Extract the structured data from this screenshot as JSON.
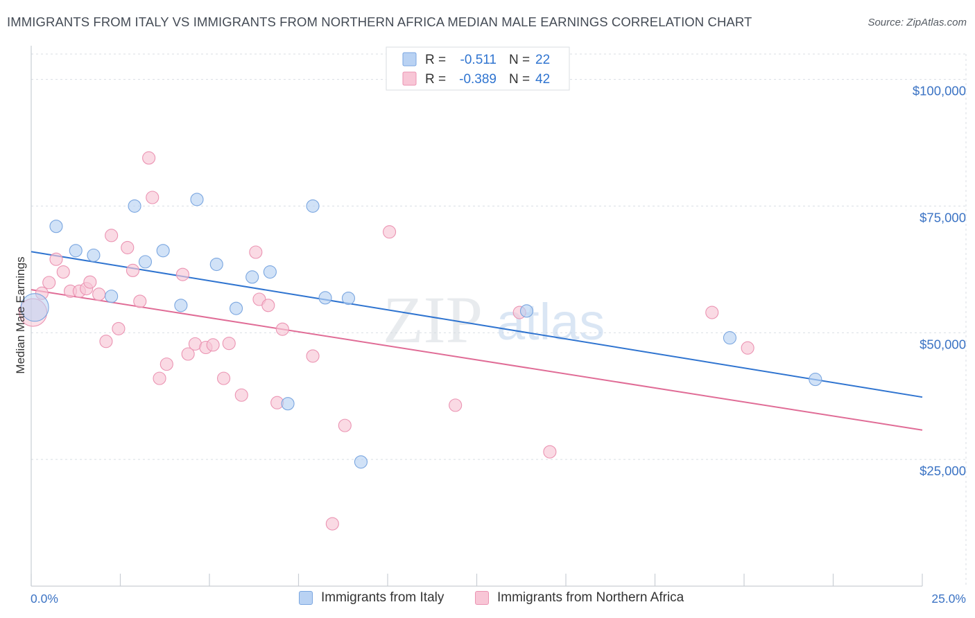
{
  "title": "IMMIGRANTS FROM ITALY VS IMMIGRANTS FROM NORTHERN AFRICA MEDIAN MALE EARNINGS CORRELATION CHART",
  "source": "Source: ZipAtlas.com",
  "watermark": {
    "zip": "ZIP",
    "atlas": "atlas"
  },
  "colors": {
    "italy_fill": "#b9d2f3",
    "italy_stroke": "#7aa6e0",
    "italy_line": "#2f74d0",
    "africa_fill": "#f8c6d6",
    "africa_stroke": "#eb93b2",
    "africa_line": "#e06c96",
    "axis_label": "#3b73c4",
    "grid": "#d8dde3"
  },
  "legend_top": {
    "rows": [
      {
        "r_label": "R =",
        "r_value": "-0.511",
        "n_label": "N =",
        "n_value": "22"
      },
      {
        "r_label": "R =",
        "r_value": "-0.389",
        "n_label": "N =",
        "n_value": "42"
      }
    ]
  },
  "chart_data": {
    "type": "scatter",
    "title": "IMMIGRANTS FROM ITALY VS IMMIGRANTS FROM NORTHERN AFRICA MEDIAN MALE EARNINGS CORRELATION CHART",
    "xlabel": "",
    "ylabel": "Median Male Earnings",
    "xlim": [
      0,
      25
    ],
    "ylim": [
      0,
      105000
    ],
    "x_tick_labels": [
      "0.0%",
      "25.0%"
    ],
    "y_ticks": [
      25000,
      50000,
      75000,
      100000
    ],
    "y_tick_labels": [
      "$25,000",
      "$50,000",
      "$75,000",
      "$100,000"
    ],
    "grid": true,
    "legend_position": "top-center",
    "series": [
      {
        "name": "Immigrants from Italy",
        "r": -0.511,
        "n": 22,
        "trend": {
          "x": [
            0,
            25
          ],
          "y": [
            66000,
            37300
          ]
        },
        "points": [
          {
            "x": 0.1,
            "y": 55000,
            "big": true
          },
          {
            "x": 0.7,
            "y": 71000
          },
          {
            "x": 1.25,
            "y": 66200
          },
          {
            "x": 1.75,
            "y": 65300
          },
          {
            "x": 2.25,
            "y": 57200
          },
          {
            "x": 2.9,
            "y": 75000
          },
          {
            "x": 3.2,
            "y": 64000
          },
          {
            "x": 3.7,
            "y": 66200
          },
          {
            "x": 4.2,
            "y": 55400
          },
          {
            "x": 4.65,
            "y": 76300
          },
          {
            "x": 5.2,
            "y": 63500
          },
          {
            "x": 5.75,
            "y": 54800
          },
          {
            "x": 6.2,
            "y": 61000
          },
          {
            "x": 6.7,
            "y": 62000
          },
          {
            "x": 7.2,
            "y": 36000
          },
          {
            "x": 7.9,
            "y": 75000
          },
          {
            "x": 8.25,
            "y": 56900
          },
          {
            "x": 8.9,
            "y": 56800
          },
          {
            "x": 9.25,
            "y": 24500
          },
          {
            "x": 13.9,
            "y": 54300
          },
          {
            "x": 19.6,
            "y": 49000
          },
          {
            "x": 22.0,
            "y": 40800
          }
        ]
      },
      {
        "name": "Immigrants from Northern Africa",
        "r": -0.389,
        "n": 42,
        "trend": {
          "x": [
            0,
            25
          ],
          "y": [
            58500,
            30800
          ]
        },
        "points": [
          {
            "x": 0.05,
            "y": 54000,
            "big": true
          },
          {
            "x": 0.3,
            "y": 57800
          },
          {
            "x": 0.5,
            "y": 59900
          },
          {
            "x": 0.7,
            "y": 64500
          },
          {
            "x": 0.9,
            "y": 62000
          },
          {
            "x": 1.1,
            "y": 58200
          },
          {
            "x": 1.35,
            "y": 58200
          },
          {
            "x": 1.55,
            "y": 58700
          },
          {
            "x": 1.65,
            "y": 60000
          },
          {
            "x": 1.9,
            "y": 57600
          },
          {
            "x": 2.1,
            "y": 48300
          },
          {
            "x": 2.25,
            "y": 69200
          },
          {
            "x": 2.45,
            "y": 50800
          },
          {
            "x": 2.7,
            "y": 66800
          },
          {
            "x": 2.85,
            "y": 62300
          },
          {
            "x": 3.05,
            "y": 56200
          },
          {
            "x": 3.3,
            "y": 84500
          },
          {
            "x": 3.4,
            "y": 76700
          },
          {
            "x": 3.6,
            "y": 41000
          },
          {
            "x": 3.8,
            "y": 43800
          },
          {
            "x": 4.25,
            "y": 61500
          },
          {
            "x": 4.4,
            "y": 45800
          },
          {
            "x": 4.6,
            "y": 47800
          },
          {
            "x": 4.9,
            "y": 47100
          },
          {
            "x": 5.1,
            "y": 47600
          },
          {
            "x": 5.4,
            "y": 41000
          },
          {
            "x": 5.55,
            "y": 47900
          },
          {
            "x": 5.9,
            "y": 37700
          },
          {
            "x": 6.3,
            "y": 65900
          },
          {
            "x": 6.4,
            "y": 56600
          },
          {
            "x": 6.65,
            "y": 55400
          },
          {
            "x": 6.9,
            "y": 36200
          },
          {
            "x": 7.05,
            "y": 50700
          },
          {
            "x": 7.9,
            "y": 45400
          },
          {
            "x": 8.45,
            "y": 12300
          },
          {
            "x": 8.8,
            "y": 31700
          },
          {
            "x": 10.05,
            "y": 69900
          },
          {
            "x": 11.9,
            "y": 35700
          },
          {
            "x": 13.7,
            "y": 54000
          },
          {
            "x": 14.55,
            "y": 26500
          },
          {
            "x": 19.1,
            "y": 54000
          },
          {
            "x": 20.1,
            "y": 47000
          }
        ]
      }
    ]
  }
}
